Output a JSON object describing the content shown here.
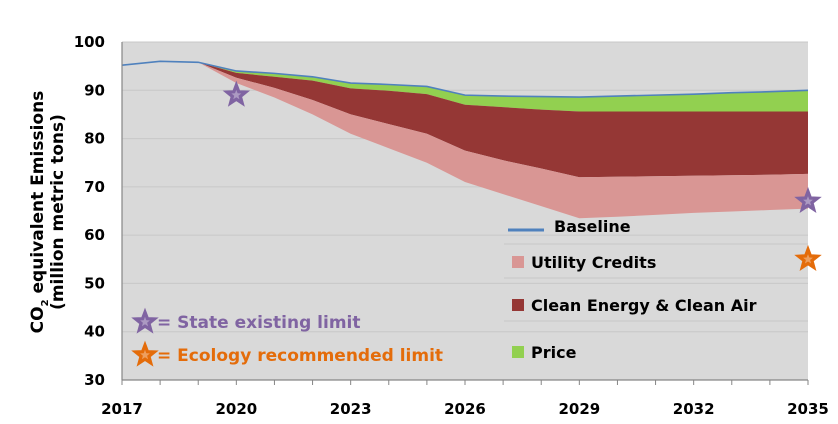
{
  "chart_data": {
    "type": "area",
    "title": "",
    "xlabel": "",
    "ylabel": "CO2 equivalent Emissions (million metric tons)",
    "ylabel_line1_prefix": "CO",
    "ylabel_line1_sub": "2",
    "ylabel_line1_rest": " equivalent Emissions",
    "ylabel_line2": "(million metric tons)",
    "xlim": [
      2017,
      2035
    ],
    "ylim": [
      30,
      100
    ],
    "grid": true,
    "x_tick_labels": [
      "2017",
      "2020",
      "2023",
      "2026",
      "2029",
      "2032",
      "2035"
    ],
    "x_tick_values": [
      2017,
      2020,
      2023,
      2026,
      2029,
      2032,
      2035
    ],
    "y_tick_labels": [
      "30",
      "40",
      "50",
      "60",
      "70",
      "80",
      "90",
      "100"
    ],
    "y_tick_values": [
      30,
      40,
      50,
      60,
      70,
      80,
      90,
      100
    ],
    "x": [
      2017,
      2018,
      2019,
      2020,
      2021,
      2022,
      2023,
      2024,
      2025,
      2026,
      2027,
      2028,
      2029,
      2030,
      2031,
      2032,
      2033,
      2034,
      2035
    ],
    "series": [
      {
        "name": "Baseline",
        "kind": "line",
        "color": "#4f81bd",
        "values": [
          95.2,
          96.0,
          95.8,
          94.0,
          93.5,
          92.8,
          91.5,
          91.2,
          90.8,
          89.0,
          88.8,
          88.7,
          88.6,
          88.8,
          89.0,
          89.2,
          89.5,
          89.7,
          90.0
        ]
      },
      {
        "name": "Price",
        "kind": "band",
        "color": "#92d050",
        "top": "Baseline",
        "bottom": [
          95.2,
          96.0,
          95.8,
          93.6,
          92.8,
          92.0,
          90.4,
          89.9,
          89.2,
          87.0,
          86.5,
          86.0,
          85.6,
          85.6,
          85.6,
          85.6,
          85.6,
          85.6,
          85.6
        ]
      },
      {
        "name": "Clean Energy & Clean Air",
        "kind": "band",
        "color": "#953735",
        "bottom": [
          95.2,
          96.0,
          95.8,
          92.6,
          90.5,
          88.0,
          85.0,
          83.0,
          81.0,
          77.5,
          75.5,
          73.8,
          72.0,
          72.1,
          72.2,
          72.3,
          72.4,
          72.5,
          72.7
        ]
      },
      {
        "name": "Utility Credits",
        "kind": "band",
        "color": "#d99694",
        "bottom": [
          95.2,
          96.0,
          95.8,
          91.5,
          88.5,
          85.0,
          81.0,
          78.0,
          75.0,
          71.0,
          68.5,
          66.0,
          63.5,
          63.8,
          64.2,
          64.6,
          64.9,
          65.2,
          65.5
        ]
      }
    ],
    "markers": [
      {
        "name": "State existing limit",
        "shape": "star",
        "color": "#8064a2",
        "points": [
          [
            2020,
            89
          ],
          [
            2035,
            67
          ]
        ]
      },
      {
        "name": "Ecology recommended limit",
        "shape": "star",
        "color": "#e46c0a",
        "points": [
          [
            2035,
            55
          ]
        ]
      }
    ],
    "legend": {
      "placement": "bottom-right-inside",
      "entries": [
        {
          "label": "Baseline",
          "swatch": "line",
          "color": "#4f81bd"
        },
        {
          "label": "Utility Credits",
          "swatch": "box",
          "color": "#d99694"
        },
        {
          "label": "Clean Energy & Clean Air",
          "swatch": "box",
          "color": "#953735"
        },
        {
          "label": "Price",
          "swatch": "box",
          "color": "#92d050"
        }
      ]
    },
    "annotations": [
      {
        "text": "= State existing limit",
        "color": "#8064a2",
        "icon": "star",
        "placement": "bottom-left"
      },
      {
        "text": "= Ecology recommended limit",
        "color": "#e46c0a",
        "icon": "star",
        "placement": "bottom-left"
      }
    ],
    "plot_background": "#d9d9d9",
    "gridline_color": "#c8c8c8"
  }
}
